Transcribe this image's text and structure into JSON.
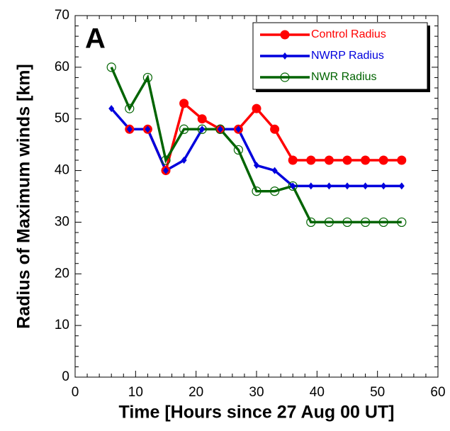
{
  "chart_data": {
    "type": "line",
    "panel_label": "A",
    "x_label": "Time [Hours since 27 Aug 00 UT]",
    "y_label": "Radius of Maximum winds [km]",
    "x": [
      6,
      9,
      12,
      15,
      18,
      21,
      24,
      27,
      30,
      33,
      36,
      39,
      42,
      45,
      48,
      51,
      54
    ],
    "series": [
      {
        "name": "Control Radius",
        "color": "#ff0000",
        "marker": "filled-circle",
        "values": [
          null,
          48,
          48,
          40,
          53,
          50,
          48,
          48,
          52,
          48,
          42,
          42,
          42,
          42,
          42,
          42,
          42
        ]
      },
      {
        "name": "NWRP Radius",
        "color": "#0000dd",
        "marker": "diamond",
        "values": [
          52,
          48,
          48,
          40,
          42,
          48,
          48,
          48,
          41,
          40,
          37,
          37,
          37,
          37,
          37,
          37,
          37
        ]
      },
      {
        "name": "NWR Radius",
        "color": "#006400",
        "marker": "open-circle",
        "values": [
          60,
          52,
          58,
          42,
          48,
          48,
          48,
          44,
          36,
          36,
          37,
          30,
          30,
          30,
          30,
          30,
          30
        ]
      }
    ],
    "xlim": [
      0,
      60
    ],
    "xticks": [
      0,
      10,
      20,
      30,
      40,
      50,
      60
    ],
    "ylim": [
      0,
      70
    ],
    "yticks": [
      0,
      10,
      20,
      30,
      40,
      50,
      60,
      70
    ],
    "legend": "upper right"
  }
}
